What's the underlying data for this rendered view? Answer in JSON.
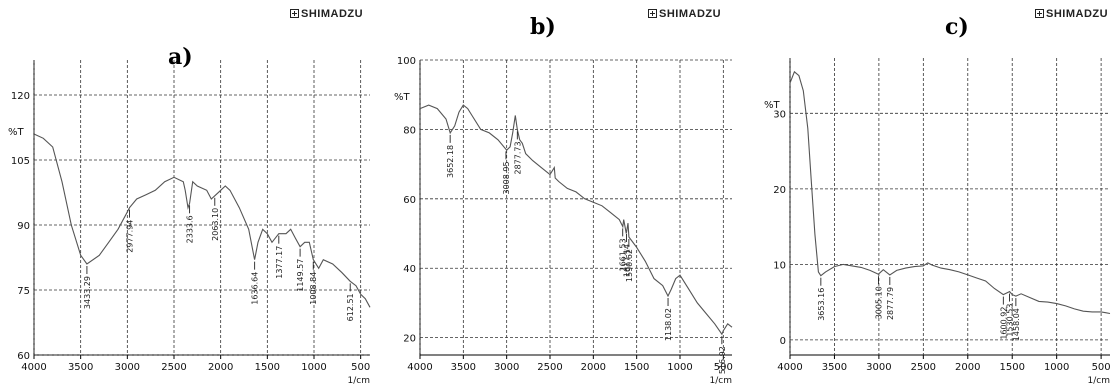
{
  "panels": [
    {
      "id": "a",
      "label": "a)",
      "brand": "SHIMADZU"
    },
    {
      "id": "b",
      "label": "b)",
      "brand": "SHIMADZU"
    },
    {
      "id": "c",
      "label": "c)",
      "brand": "SHIMADZU"
    }
  ],
  "chart_data": [
    {
      "type": "line",
      "title": "a)",
      "xlabel": "1/cm",
      "ylabel": "%T",
      "xlim": [
        4000,
        400
      ],
      "ylim": [
        60,
        120
      ],
      "x_reversed": true,
      "grid": true,
      "x_ticks": [
        4000,
        3500,
        3000,
        2500,
        2000,
        1500,
        1000,
        500
      ],
      "y_ticks": [
        60,
        75,
        90,
        105,
        120
      ],
      "x": [
        4000,
        3900,
        3800,
        3700,
        3600,
        3500,
        3433,
        3300,
        3200,
        3100,
        3000,
        2977,
        2900,
        2800,
        2700,
        2600,
        2500,
        2400,
        2380,
        2350,
        2333,
        2300,
        2250,
        2150,
        2100,
        2050,
        2000,
        1950,
        1900,
        1800,
        1700,
        1636,
        1600,
        1550,
        1500,
        1450,
        1377,
        1300,
        1250,
        1200,
        1149,
        1100,
        1050,
        1008,
        950,
        900,
        800,
        700,
        612,
        550,
        500,
        450,
        400
      ],
      "values": [
        111,
        110,
        108,
        100,
        90,
        83,
        81,
        83,
        86,
        89,
        93,
        94,
        96,
        97,
        98,
        100,
        101,
        100,
        98,
        94,
        95,
        100,
        99,
        98,
        96,
        97,
        98,
        99,
        98,
        94,
        89,
        82,
        86,
        89,
        88,
        86,
        88,
        88,
        89,
        87,
        85,
        86,
        86,
        82,
        80,
        82,
        81,
        79,
        77,
        76,
        74,
        73,
        71
      ],
      "peak_labels": [
        {
          "x": 3433,
          "text": "3433.29"
        },
        {
          "x": 2977,
          "text": "2977.94"
        },
        {
          "x": 2333,
          "text": "2333.6"
        },
        {
          "x": 2063,
          "text": "2063.10"
        },
        {
          "x": 1636,
          "text": "1636.64"
        },
        {
          "x": 1377,
          "text": "1377.17"
        },
        {
          "x": 1149,
          "text": "1149.57"
        },
        {
          "x": 1008,
          "text": "1008.84"
        },
        {
          "x": 612,
          "text": "612.51"
        }
      ]
    },
    {
      "type": "line",
      "title": "b)",
      "xlabel": "1/cm",
      "ylabel": "%T",
      "xlim": [
        4000,
        400
      ],
      "ylim": [
        15,
        100
      ],
      "x_reversed": true,
      "grid": true,
      "x_ticks": [
        4000,
        3500,
        3000,
        2500,
        2000,
        1500,
        1000,
        500
      ],
      "y_ticks": [
        20,
        40,
        60,
        80,
        100
      ],
      "x": [
        4000,
        3900,
        3800,
        3700,
        3652,
        3600,
        3550,
        3500,
        3450,
        3400,
        3300,
        3200,
        3100,
        3000,
        2960,
        2930,
        2900,
        2877,
        2850,
        2820,
        2780,
        2700,
        2600,
        2500,
        2450,
        2440,
        2400,
        2300,
        2200,
        2100,
        2000,
        1900,
        1800,
        1700,
        1660,
        1650,
        1620,
        1600,
        1590,
        1500,
        1400,
        1300,
        1200,
        1138,
        1100,
        1050,
        1000,
        950,
        900,
        800,
        700,
        600,
        517,
        500,
        450,
        400
      ],
      "values": [
        86,
        87,
        86,
        83,
        79,
        81,
        85,
        87,
        86,
        84,
        80,
        79,
        77,
        74,
        75,
        79,
        84,
        80,
        77,
        76,
        73,
        71,
        69,
        67,
        69,
        66,
        65,
        63,
        62,
        60,
        59,
        58,
        56,
        54,
        52,
        54,
        50,
        53,
        49,
        46,
        42,
        37,
        35,
        32,
        34,
        37,
        38,
        36,
        34,
        30,
        27,
        24,
        21,
        22,
        24,
        23
      ],
      "peak_labels": [
        {
          "x": 3652,
          "text": "3652.18"
        },
        {
          "x": 3008,
          "text": "3008.95"
        },
        {
          "x": 2877,
          "text": "2877.73"
        },
        {
          "x": 1661,
          "text": "1661.53"
        },
        {
          "x": 1617,
          "text": "1617.14"
        },
        {
          "x": 1590,
          "text": "1590.62"
        },
        {
          "x": 1138,
          "text": "1138.02"
        },
        {
          "x": 517,
          "text": "516.92"
        }
      ]
    },
    {
      "type": "line",
      "title": "c)",
      "xlabel": "1/cm",
      "ylabel": "%T",
      "xlim": [
        4000,
        400
      ],
      "ylim": [
        -2,
        36
      ],
      "x_reversed": true,
      "grid": true,
      "x_ticks": [
        4000,
        3500,
        3000,
        2500,
        2000,
        1500,
        1000,
        500
      ],
      "y_ticks": [
        0,
        10,
        20,
        30
      ],
      "x": [
        4000,
        3950,
        3900,
        3850,
        3800,
        3760,
        3720,
        3680,
        3653,
        3600,
        3500,
        3400,
        3300,
        3200,
        3100,
        3005,
        2950,
        2877,
        2800,
        2700,
        2600,
        2500,
        2450,
        2400,
        2300,
        2200,
        2100,
        2000,
        1900,
        1800,
        1700,
        1600,
        1530,
        1500,
        1459,
        1400,
        1300,
        1200,
        1100,
        1000,
        900,
        800,
        700,
        600,
        500,
        450,
        400
      ],
      "values": [
        34,
        35.5,
        35,
        33,
        28,
        21,
        14,
        9,
        8.5,
        9,
        9.7,
        10,
        9.8,
        9.6,
        9.2,
        8.7,
        9.3,
        8.6,
        9.2,
        9.5,
        9.7,
        9.8,
        10.2,
        9.9,
        9.5,
        9.3,
        9.0,
        8.6,
        8.2,
        7.8,
        6.8,
        6.0,
        6.4,
        6.0,
        5.8,
        6.1,
        5.6,
        5.1,
        5.0,
        4.8,
        4.5,
        4.1,
        3.8,
        3.7,
        3.7,
        3.6,
        3.5
      ],
      "peak_labels": [
        {
          "x": 3653,
          "text": "3653.16"
        },
        {
          "x": 3005,
          "text": "3005.10"
        },
        {
          "x": 2877,
          "text": "2877.79"
        },
        {
          "x": 1600,
          "text": "1600.92"
        },
        {
          "x": 1530,
          "text": "1530.53"
        },
        {
          "x": 1459,
          "text": "1458.04"
        }
      ]
    }
  ]
}
